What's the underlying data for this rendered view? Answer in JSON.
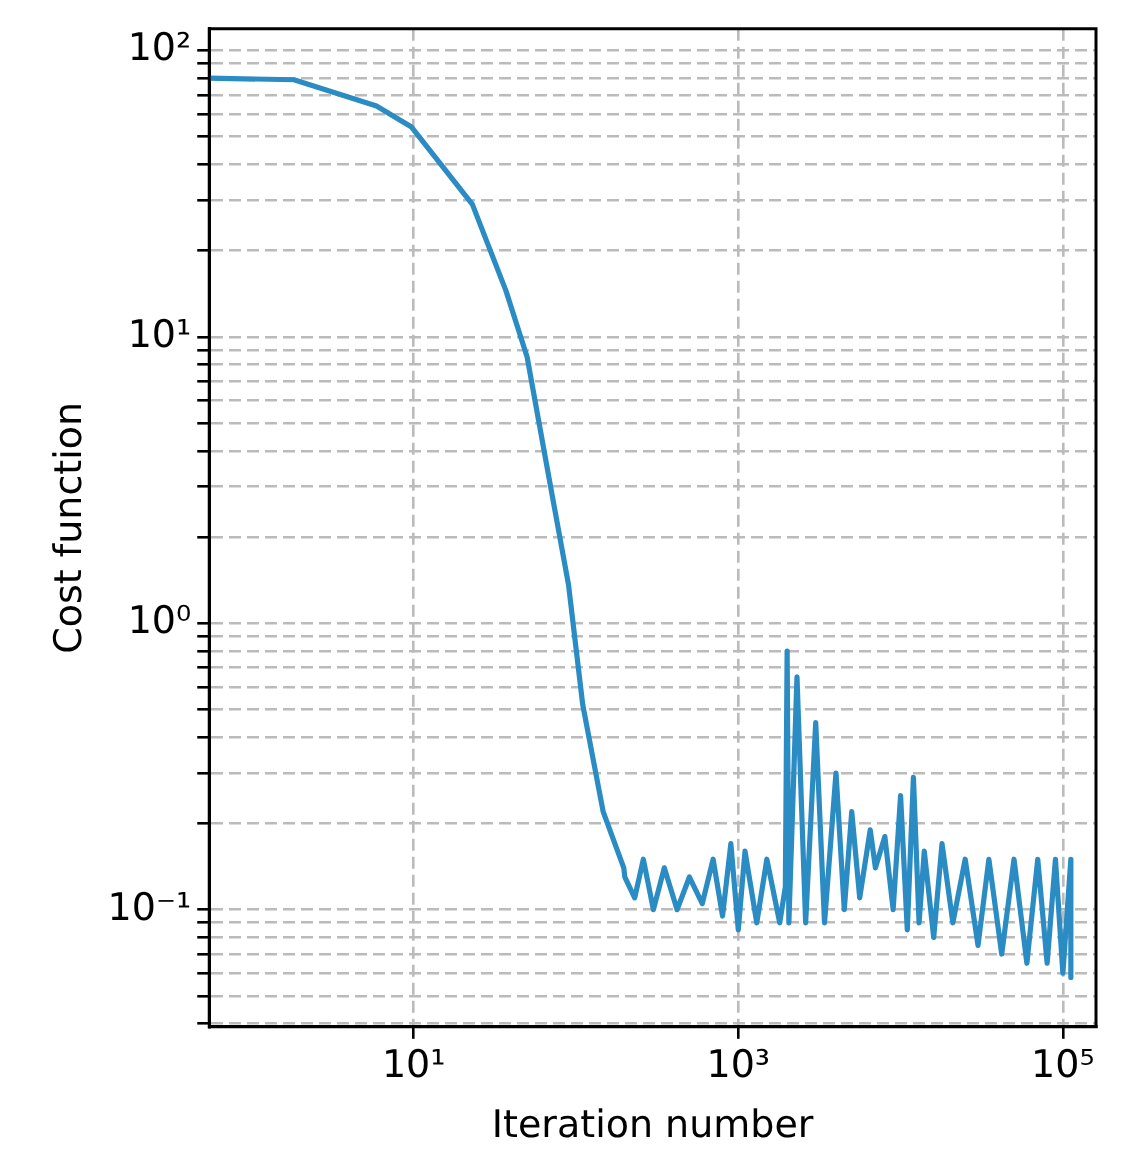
{
  "chart_data": {
    "type": "line",
    "xlabel": "Iteration number",
    "ylabel": "Cost function",
    "log": "xy",
    "grid": true,
    "marker": "none",
    "line_style": "solid",
    "xlim": [
      0.55,
      160000
    ],
    "ylim": [
      0.039,
      119
    ],
    "xticks": [
      {
        "value": 10,
        "label": "10¹"
      },
      {
        "value": 1000,
        "label": "10³"
      },
      {
        "value": 100000,
        "label": "10⁵"
      }
    ],
    "yticks": [
      {
        "value": 0.04,
        "label": null
      },
      {
        "value": 0.05,
        "label": null
      },
      {
        "value": 0.06,
        "label": null
      },
      {
        "value": 0.07,
        "label": null
      },
      {
        "value": 0.08,
        "label": null
      },
      {
        "value": 0.09,
        "label": null
      },
      {
        "value": 0.1,
        "label": "10⁻¹"
      },
      {
        "value": 0.2,
        "label": null
      },
      {
        "value": 0.3,
        "label": null
      },
      {
        "value": 0.4,
        "label": null
      },
      {
        "value": 0.5,
        "label": null
      },
      {
        "value": 0.6,
        "label": null
      },
      {
        "value": 0.7,
        "label": null
      },
      {
        "value": 0.8,
        "label": null
      },
      {
        "value": 0.9,
        "label": null
      },
      {
        "value": 1,
        "label": "10⁰"
      },
      {
        "value": 2,
        "label": null
      },
      {
        "value": 3,
        "label": null
      },
      {
        "value": 4,
        "label": null
      },
      {
        "value": 5,
        "label": null
      },
      {
        "value": 6,
        "label": null
      },
      {
        "value": 7,
        "label": null
      },
      {
        "value": 8,
        "label": null
      },
      {
        "value": 9,
        "label": null
      },
      {
        "value": 10,
        "label": "10¹"
      },
      {
        "value": 20,
        "label": null
      },
      {
        "value": 30,
        "label": null
      },
      {
        "value": 40,
        "label": null
      },
      {
        "value": 50,
        "label": null
      },
      {
        "value": 60,
        "label": null
      },
      {
        "value": 70,
        "label": null
      },
      {
        "value": 80,
        "label": null
      },
      {
        "value": 90,
        "label": null
      },
      {
        "value": 100,
        "label": "10²"
      }
    ],
    "series": [
      {
        "color": "#2b8cc4",
        "x": [
          0.55,
          1.83,
          5.9,
          9.7,
          23,
          37,
          50,
          67,
          90,
          110,
          147,
          197,
          200,
          230,
          260,
          300,
          350,
          420,
          500,
          600,
          700,
          800,
          900,
          1000,
          1100,
          1300,
          1500,
          1800,
          1950,
          2000,
          2050,
          2300,
          2600,
          3000,
          3400,
          4000,
          4500,
          5000,
          5600,
          6500,
          7000,
          8000,
          9000,
          10000,
          11000,
          12000,
          13000,
          14000,
          16000,
          18000,
          21000,
          25000,
          30000,
          35000,
          42000,
          50000,
          60000,
          70000,
          80000,
          90000,
          100000,
          112000,
          112000
        ],
        "values": [
          80,
          79,
          64,
          54,
          29,
          14.5,
          8.5,
          3.4,
          1.36,
          0.52,
          0.22,
          0.14,
          0.13,
          0.11,
          0.15,
          0.1,
          0.14,
          0.1,
          0.13,
          0.105,
          0.15,
          0.095,
          0.17,
          0.085,
          0.16,
          0.09,
          0.15,
          0.09,
          0.12,
          0.8,
          0.09,
          0.65,
          0.09,
          0.45,
          0.09,
          0.3,
          0.1,
          0.22,
          0.11,
          0.19,
          0.14,
          0.18,
          0.1,
          0.25,
          0.085,
          0.29,
          0.09,
          0.16,
          0.08,
          0.17,
          0.09,
          0.15,
          0.075,
          0.15,
          0.07,
          0.15,
          0.065,
          0.15,
          0.065,
          0.15,
          0.06,
          0.15,
          0.058
        ]
      }
    ]
  }
}
